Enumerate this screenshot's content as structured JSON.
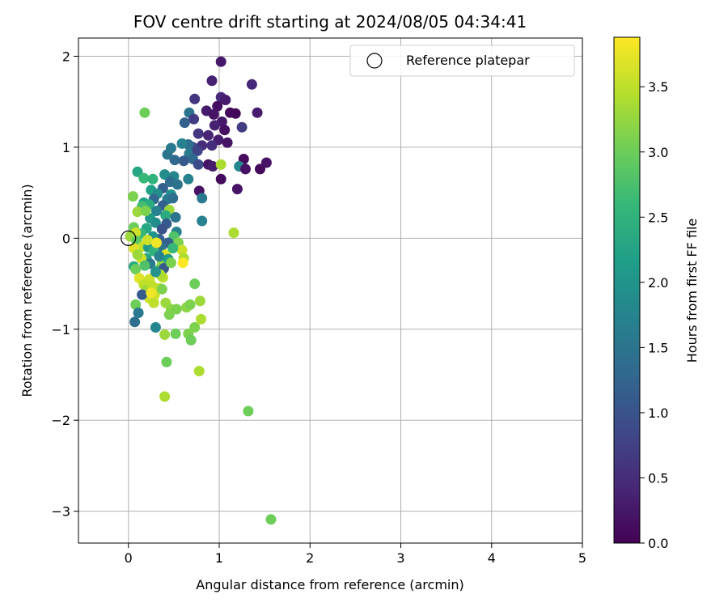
{
  "chart_data": {
    "type": "scatter",
    "title": "FOV centre drift starting at 2024/08/05 04:34:41",
    "xlabel": "Angular distance from reference (arcmin)",
    "ylabel": "Rotation from reference (arcmin)",
    "xlim": [
      -0.55,
      5.0
    ],
    "ylim": [
      -3.35,
      2.2
    ],
    "xticks": [
      0,
      1,
      2,
      3,
      4,
      5
    ],
    "yticks": [
      -3,
      -2,
      -1,
      0,
      1,
      2
    ],
    "grid": true,
    "legend": {
      "placement": "top-right",
      "entries": [
        "Reference platepar"
      ]
    },
    "reference_point": {
      "name": "Reference platepar",
      "x": 0,
      "y": 0
    },
    "colorbar": {
      "label": "Hours from first FF file",
      "range": [
        0.0,
        3.88
      ],
      "ticks": [
        0.0,
        0.5,
        1.0,
        1.5,
        2.0,
        2.5,
        3.0,
        3.5
      ],
      "colormap": "viridis",
      "colors": [
        "#440154",
        "#482878",
        "#3e4989",
        "#31688e",
        "#26828e",
        "#1f9e89",
        "#35b779",
        "#6ece58",
        "#b5de2b",
        "#fde725"
      ]
    },
    "points": [
      {
        "x": 1.02,
        "y": 1.94,
        "h": 0.25
      },
      {
        "x": 1.36,
        "y": 1.69,
        "h": 0.45
      },
      {
        "x": 0.92,
        "y": 1.73,
        "h": 0.35
      },
      {
        "x": 1.42,
        "y": 1.38,
        "h": 0.3
      },
      {
        "x": 1.25,
        "y": 1.22,
        "h": 0.7
      },
      {
        "x": 1.02,
        "y": 1.55,
        "h": 0.45
      },
      {
        "x": 1.07,
        "y": 1.52,
        "h": 0.3
      },
      {
        "x": 0.98,
        "y": 1.45,
        "h": 0.15
      },
      {
        "x": 0.86,
        "y": 1.4,
        "h": 0.3
      },
      {
        "x": 0.94,
        "y": 1.36,
        "h": 0.2
      },
      {
        "x": 1.12,
        "y": 1.38,
        "h": 0.1
      },
      {
        "x": 1.18,
        "y": 1.37,
        "h": 0.05
      },
      {
        "x": 1.03,
        "y": 1.28,
        "h": 0.25
      },
      {
        "x": 0.95,
        "y": 1.24,
        "h": 0.35
      },
      {
        "x": 1.06,
        "y": 1.19,
        "h": 0.15
      },
      {
        "x": 0.88,
        "y": 1.13,
        "h": 0.4
      },
      {
        "x": 0.99,
        "y": 1.08,
        "h": 0.3
      },
      {
        "x": 0.92,
        "y": 1.02,
        "h": 0.5
      },
      {
        "x": 1.09,
        "y": 1.05,
        "h": 0.2
      },
      {
        "x": 0.73,
        "y": 1.53,
        "h": 0.6
      },
      {
        "x": 0.67,
        "y": 1.38,
        "h": 1.5
      },
      {
        "x": 0.72,
        "y": 1.31,
        "h": 0.7
      },
      {
        "x": 0.62,
        "y": 1.27,
        "h": 1.2
      },
      {
        "x": 0.77,
        "y": 1.15,
        "h": 0.6
      },
      {
        "x": 0.81,
        "y": 1.02,
        "h": 0.5
      },
      {
        "x": 0.71,
        "y": 1.0,
        "h": 0.9
      },
      {
        "x": 0.66,
        "y": 1.03,
        "h": 1.4
      },
      {
        "x": 0.59,
        "y": 1.04,
        "h": 1.7
      },
      {
        "x": 0.67,
        "y": 0.93,
        "h": 1.6
      },
      {
        "x": 0.76,
        "y": 0.96,
        "h": 0.8
      },
      {
        "x": 0.71,
        "y": 0.87,
        "h": 1.3
      },
      {
        "x": 0.61,
        "y": 0.85,
        "h": 1.1
      },
      {
        "x": 0.51,
        "y": 0.86,
        "h": 1.3
      },
      {
        "x": 0.43,
        "y": 0.92,
        "h": 1.5
      },
      {
        "x": 0.47,
        "y": 0.99,
        "h": 1.6
      },
      {
        "x": 0.77,
        "y": 0.81,
        "h": 0.9
      },
      {
        "x": 0.88,
        "y": 0.81,
        "h": 0.2
      },
      {
        "x": 0.93,
        "y": 0.79,
        "h": 0.3
      },
      {
        "x": 1.27,
        "y": 0.87,
        "h": 0.1
      },
      {
        "x": 1.22,
        "y": 0.79,
        "h": 1.8
      },
      {
        "x": 1.29,
        "y": 0.76,
        "h": 0.2
      },
      {
        "x": 1.45,
        "y": 0.76,
        "h": 0.1
      },
      {
        "x": 1.52,
        "y": 0.83,
        "h": 0.2
      },
      {
        "x": 1.02,
        "y": 0.81,
        "h": 3.4
      },
      {
        "x": 1.02,
        "y": 0.65,
        "h": 0.1
      },
      {
        "x": 1.2,
        "y": 0.54,
        "h": 0.2
      },
      {
        "x": 0.78,
        "y": 0.52,
        "h": 0.2
      },
      {
        "x": 0.66,
        "y": 0.65,
        "h": 1.7
      },
      {
        "x": 0.81,
        "y": 0.44,
        "h": 1.6
      },
      {
        "x": 0.81,
        "y": 0.19,
        "h": 1.7
      },
      {
        "x": 1.16,
        "y": 0.06,
        "h": 3.4
      },
      {
        "x": 0.4,
        "y": 0.7,
        "h": 1.9
      },
      {
        "x": 0.5,
        "y": 0.68,
        "h": 1.8
      },
      {
        "x": 0.46,
        "y": 0.62,
        "h": 1.4
      },
      {
        "x": 0.54,
        "y": 0.59,
        "h": 1.5
      },
      {
        "x": 0.38,
        "y": 0.55,
        "h": 1.2
      },
      {
        "x": 0.47,
        "y": 0.48,
        "h": 2.0
      },
      {
        "x": 0.43,
        "y": 0.43,
        "h": 1.6
      },
      {
        "x": 0.49,
        "y": 0.44,
        "h": 1.4
      },
      {
        "x": 0.38,
        "y": 0.36,
        "h": 1.2
      },
      {
        "x": 0.45,
        "y": 0.31,
        "h": 3.3
      },
      {
        "x": 0.41,
        "y": 0.25,
        "h": 2.4
      },
      {
        "x": 0.52,
        "y": 0.23,
        "h": 1.5
      },
      {
        "x": 0.42,
        "y": 0.16,
        "h": 1.1
      },
      {
        "x": 0.53,
        "y": 0.07,
        "h": 1.7
      },
      {
        "x": 0.5,
        "y": 0.02,
        "h": 2.8
      },
      {
        "x": 0.55,
        "y": -0.05,
        "h": 3.1
      },
      {
        "x": 0.59,
        "y": -0.13,
        "h": 3.6
      },
      {
        "x": 0.61,
        "y": -0.22,
        "h": 3.4
      },
      {
        "x": 0.6,
        "y": -0.27,
        "h": 3.88
      },
      {
        "x": 0.44,
        "y": -0.05,
        "h": 1.2
      },
      {
        "x": 0.36,
        "y": -0.1,
        "h": 1.5
      },
      {
        "x": 0.41,
        "y": -0.18,
        "h": 3.7
      },
      {
        "x": 0.37,
        "y": -0.28,
        "h": 3.2
      },
      {
        "x": 0.32,
        "y": -0.35,
        "h": 2.9
      },
      {
        "x": 0.38,
        "y": -0.43,
        "h": 3.5
      },
      {
        "x": 0.34,
        "y": -0.55,
        "h": 3.5
      },
      {
        "x": 0.29,
        "y": -0.62,
        "h": 3.6
      },
      {
        "x": 0.23,
        "y": -0.66,
        "h": 3.6
      },
      {
        "x": 0.28,
        "y": -0.71,
        "h": 3.5
      },
      {
        "x": 0.37,
        "y": -0.56,
        "h": 3.1
      },
      {
        "x": 0.41,
        "y": -0.71,
        "h": 3.3
      },
      {
        "x": 0.47,
        "y": -0.78,
        "h": 3.2
      },
      {
        "x": 0.53,
        "y": -0.78,
        "h": 3.1
      },
      {
        "x": 0.45,
        "y": -0.84,
        "h": 3.1
      },
      {
        "x": 0.64,
        "y": -0.76,
        "h": 3.2
      },
      {
        "x": 0.68,
        "y": -0.73,
        "h": 3.1
      },
      {
        "x": 0.73,
        "y": -0.5,
        "h": 3.0
      },
      {
        "x": 0.79,
        "y": -0.69,
        "h": 3.3
      },
      {
        "x": 0.8,
        "y": -0.89,
        "h": 3.4
      },
      {
        "x": 0.73,
        "y": -0.98,
        "h": 3.1
      },
      {
        "x": 0.66,
        "y": -1.05,
        "h": 3.1
      },
      {
        "x": 0.69,
        "y": -1.12,
        "h": 3.0
      },
      {
        "x": 0.52,
        "y": -1.05,
        "h": 3.0
      },
      {
        "x": 0.4,
        "y": -1.06,
        "h": 3.3
      },
      {
        "x": 0.3,
        "y": -0.98,
        "h": 1.8
      },
      {
        "x": 0.42,
        "y": -1.36,
        "h": 3.0
      },
      {
        "x": 0.78,
        "y": -1.46,
        "h": 3.4
      },
      {
        "x": 0.4,
        "y": -1.74,
        "h": 3.4
      },
      {
        "x": 1.32,
        "y": -1.9,
        "h": 3.0
      },
      {
        "x": 1.57,
        "y": -3.09,
        "h": 3.0
      },
      {
        "x": 0.18,
        "y": 1.38,
        "h": 3.0
      },
      {
        "x": 0.1,
        "y": 0.73,
        "h": 2.3
      },
      {
        "x": 0.17,
        "y": 0.66,
        "h": 2.6
      },
      {
        "x": 0.27,
        "y": 0.65,
        "h": 2.5
      },
      {
        "x": 0.25,
        "y": 0.53,
        "h": 2.2
      },
      {
        "x": 0.32,
        "y": 0.49,
        "h": 1.9
      },
      {
        "x": 0.28,
        "y": 0.43,
        "h": 1.3
      },
      {
        "x": 0.17,
        "y": 0.39,
        "h": 2.2
      },
      {
        "x": 0.23,
        "y": 0.37,
        "h": 2.4
      },
      {
        "x": 0.15,
        "y": 0.35,
        "h": 2.7
      },
      {
        "x": 0.05,
        "y": 0.46,
        "h": 3.1
      },
      {
        "x": 0.31,
        "y": 0.3,
        "h": 1.7
      },
      {
        "x": 0.24,
        "y": 0.22,
        "h": 2.1
      },
      {
        "x": 0.3,
        "y": 0.17,
        "h": 1.9
      },
      {
        "x": 0.2,
        "y": 0.11,
        "h": 2.3
      },
      {
        "x": 0.37,
        "y": 0.1,
        "h": 1.0
      },
      {
        "x": 0.14,
        "y": 0.05,
        "h": 2.6
      },
      {
        "x": 0.1,
        "y": 0.29,
        "h": 3.3
      },
      {
        "x": 0.06,
        "y": 0.12,
        "h": 3.0
      },
      {
        "x": 0.08,
        "y": 0.06,
        "h": 3.6
      },
      {
        "x": 0.02,
        "y": 0.02,
        "h": 3.3
      },
      {
        "x": 0.09,
        "y": -0.03,
        "h": 2.9
      },
      {
        "x": 0.16,
        "y": -0.09,
        "h": 3.5
      },
      {
        "x": 0.06,
        "y": -0.11,
        "h": 3.7
      },
      {
        "x": 0.22,
        "y": -0.1,
        "h": 2.1
      },
      {
        "x": 0.28,
        "y": -0.14,
        "h": 2.5
      },
      {
        "x": 0.34,
        "y": -0.2,
        "h": 1.7
      },
      {
        "x": 0.2,
        "y": -0.22,
        "h": 2.3
      },
      {
        "x": 0.14,
        "y": -0.22,
        "h": 3.6
      },
      {
        "x": 0.1,
        "y": -0.18,
        "h": 3.3
      },
      {
        "x": 0.24,
        "y": -0.28,
        "h": 1.6
      },
      {
        "x": 0.18,
        "y": -0.3,
        "h": 2.8
      },
      {
        "x": 0.06,
        "y": -0.31,
        "h": 2.4
      },
      {
        "x": 0.08,
        "y": -0.34,
        "h": 3.0
      },
      {
        "x": 0.12,
        "y": -0.44,
        "h": 3.7
      },
      {
        "x": 0.23,
        "y": -0.45,
        "h": 3.6
      },
      {
        "x": 0.17,
        "y": -0.51,
        "h": 3.5
      },
      {
        "x": 0.2,
        "y": -0.57,
        "h": 3.3
      },
      {
        "x": 0.26,
        "y": -0.52,
        "h": 3.5
      },
      {
        "x": 0.15,
        "y": -0.62,
        "h": 1.1
      },
      {
        "x": 0.08,
        "y": -0.73,
        "h": 3.0
      },
      {
        "x": 0.11,
        "y": -0.82,
        "h": 1.6
      },
      {
        "x": 0.07,
        "y": -0.92,
        "h": 1.4
      },
      {
        "x": 0.34,
        "y": -0.01,
        "h": 1.2
      },
      {
        "x": 0.27,
        "y": 0.02,
        "h": 2.0
      },
      {
        "x": 0.39,
        "y": -0.33,
        "h": 1.1
      },
      {
        "x": 0.44,
        "y": -0.23,
        "h": 2.1
      },
      {
        "x": 0.49,
        "y": -0.11,
        "h": 2.6
      },
      {
        "x": 0.47,
        "y": -0.27,
        "h": 3.1
      },
      {
        "x": 0.35,
        "y": -0.4,
        "h": 3.4
      },
      {
        "x": 0.3,
        "y": -0.37,
        "h": 2.0
      },
      {
        "x": 0.19,
        "y": 0.3,
        "h": 3.1
      },
      {
        "x": 0.21,
        "y": -0.02,
        "h": 3.6
      },
      {
        "x": 0.31,
        "y": -0.05,
        "h": 3.8
      },
      {
        "x": 0.25,
        "y": -0.6,
        "h": 3.8
      }
    ]
  }
}
